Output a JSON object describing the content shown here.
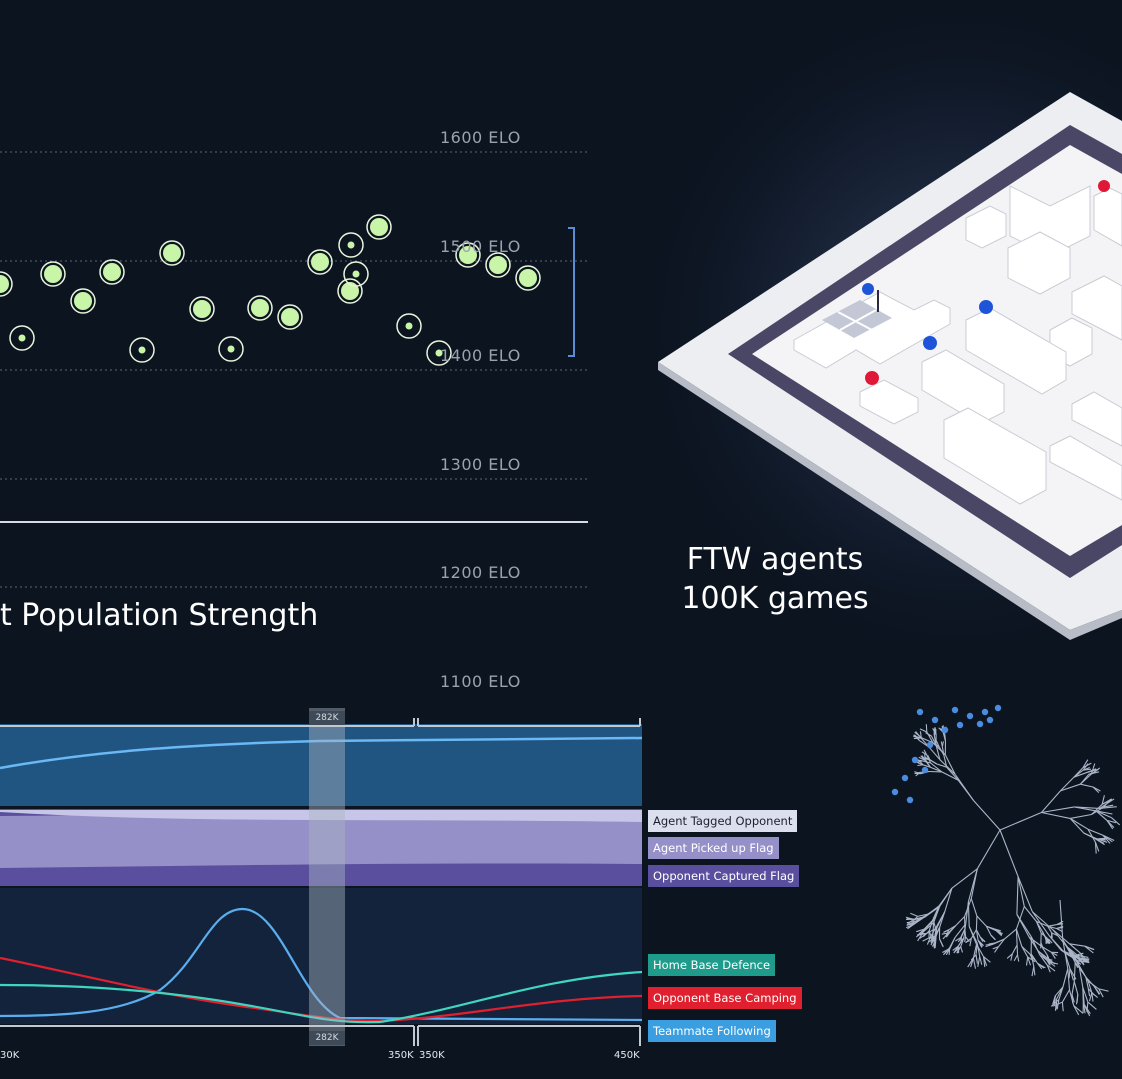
{
  "elo_labels": [
    "1600 ELO",
    "1500 ELO",
    "1400 ELO",
    "1300 ELO",
    "1200 ELO",
    "1100 ELO"
  ],
  "title_strength": "t Population Strength",
  "ftw": {
    "line1": "FTW agents",
    "line2": "100K games"
  },
  "timeline": {
    "marker_label": "282K",
    "ticks": [
      "30K",
      "350K",
      "350K",
      "450K"
    ],
    "legend_top": [
      "Agent Tagged Opponent",
      "Agent Picked up Flag",
      "Opponent Captured Flag"
    ],
    "legend_bottom": [
      "Home Base Defence",
      "Opponent Base Camping",
      "Teammate Following"
    ]
  },
  "colors": {
    "background": "#0c1420",
    "agent_dot": "#c8f5a8",
    "band_blue": "#1f5580",
    "band_purple": "#5a4f9e",
    "legend_teal": "#1e9b8a",
    "legend_red": "#e0202e",
    "legend_blue": "#3a9ee0"
  }
}
